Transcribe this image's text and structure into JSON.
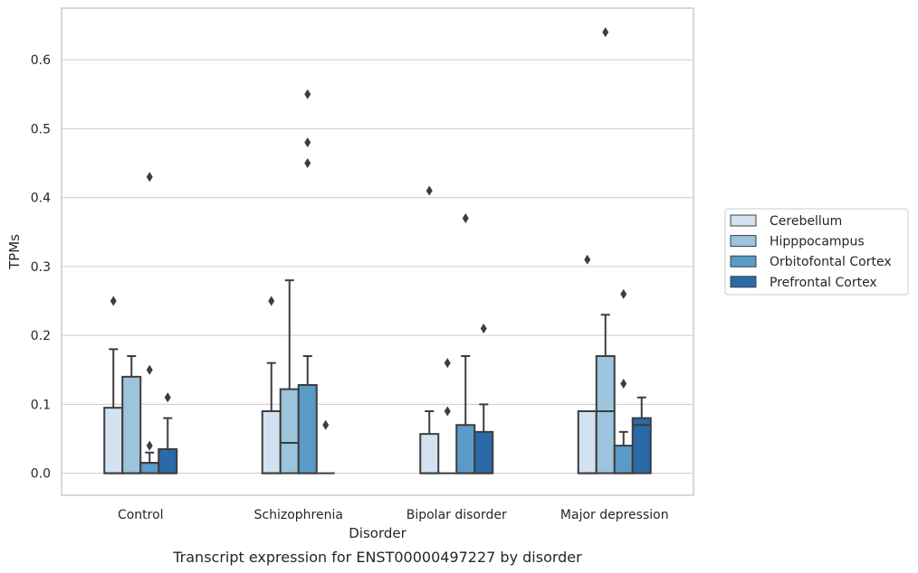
{
  "chart_data": {
    "type": "boxplot",
    "xlabel": "Disorder",
    "ylabel": "TPMs",
    "caption": "Transcript expression for ENST00000497227 by disorder",
    "ylim": [
      -0.032,
      0.675
    ],
    "yticks": [
      "0.0",
      "0.1",
      "0.2",
      "0.3",
      "0.4",
      "0.5",
      "0.6"
    ],
    "grid": "horizontal",
    "legend_position": "right",
    "categories": [
      "Control",
      "Schizophrenia",
      "Bipolar disorder",
      "Major depression"
    ],
    "series": [
      {
        "name": "Cerebellum",
        "color": "#d3e2f0",
        "boxes": [
          {
            "q1": 0,
            "median": 0,
            "q3": 0.095,
            "whisker_low": 0,
            "whisker_high": 0.18,
            "outliers": [
              0.25
            ]
          },
          {
            "q1": 0,
            "median": 0,
            "q3": 0.09,
            "whisker_low": 0,
            "whisker_high": 0.16,
            "outliers": [
              0.25
            ]
          },
          {
            "q1": 0,
            "median": 0,
            "q3": 0.057,
            "whisker_low": 0,
            "whisker_high": 0.09,
            "outliers": [
              0.41
            ]
          },
          {
            "q1": 0,
            "median": 0,
            "q3": 0.09,
            "whisker_low": 0,
            "whisker_high": 0.09,
            "outliers": [
              0.31
            ]
          }
        ]
      },
      {
        "name": "Hipppocampus",
        "color": "#9cc4dc",
        "boxes": [
          {
            "q1": 0,
            "median": 0,
            "q3": 0.14,
            "whisker_low": 0,
            "whisker_high": 0.17,
            "outliers": []
          },
          {
            "q1": 0,
            "median": 0.044,
            "q3": 0.122,
            "whisker_low": 0,
            "whisker_high": 0.28,
            "outliers": []
          },
          {
            "q1": 0,
            "median": 0,
            "q3": 0,
            "whisker_low": 0,
            "whisker_high": 0,
            "outliers": [
              0.09,
              0.16
            ]
          },
          {
            "q1": 0,
            "median": 0.09,
            "q3": 0.17,
            "whisker_low": 0,
            "whisker_high": 0.23,
            "outliers": [
              0.64
            ]
          }
        ]
      },
      {
        "name": "Orbitofontal Cortex",
        "color": "#5a9bc8",
        "boxes": [
          {
            "q1": 0,
            "median": 0.015,
            "q3": 0.015,
            "whisker_low": 0,
            "whisker_high": 0.03,
            "outliers": [
              0.04,
              0.15,
              0.43
            ]
          },
          {
            "q1": 0,
            "median": 0,
            "q3": 0.128,
            "whisker_low": 0,
            "whisker_high": 0.17,
            "outliers": [
              0.45,
              0.48,
              0.55
            ]
          },
          {
            "q1": 0,
            "median": 0,
            "q3": 0.07,
            "whisker_low": 0,
            "whisker_high": 0.17,
            "outliers": [
              0.37
            ]
          },
          {
            "q1": 0,
            "median": 0,
            "q3": 0.04,
            "whisker_low": 0,
            "whisker_high": 0.06,
            "outliers": [
              0.13,
              0.26
            ]
          }
        ]
      },
      {
        "name": "Prefrontal Cortex",
        "color": "#2a6aa8",
        "boxes": [
          {
            "q1": 0,
            "median": 0,
            "q3": 0.035,
            "whisker_low": 0,
            "whisker_high": 0.08,
            "outliers": [
              0.11
            ]
          },
          {
            "q1": 0,
            "median": 0,
            "q3": 0,
            "whisker_low": 0,
            "whisker_high": 0,
            "outliers": [
              0.07
            ]
          },
          {
            "q1": 0,
            "median": 0,
            "q3": 0.06,
            "whisker_low": 0,
            "whisker_high": 0.1,
            "outliers": [
              0.21
            ]
          },
          {
            "q1": 0,
            "median": 0.07,
            "q3": 0.08,
            "whisker_low": 0,
            "whisker_high": 0.11,
            "outliers": []
          }
        ]
      }
    ]
  }
}
